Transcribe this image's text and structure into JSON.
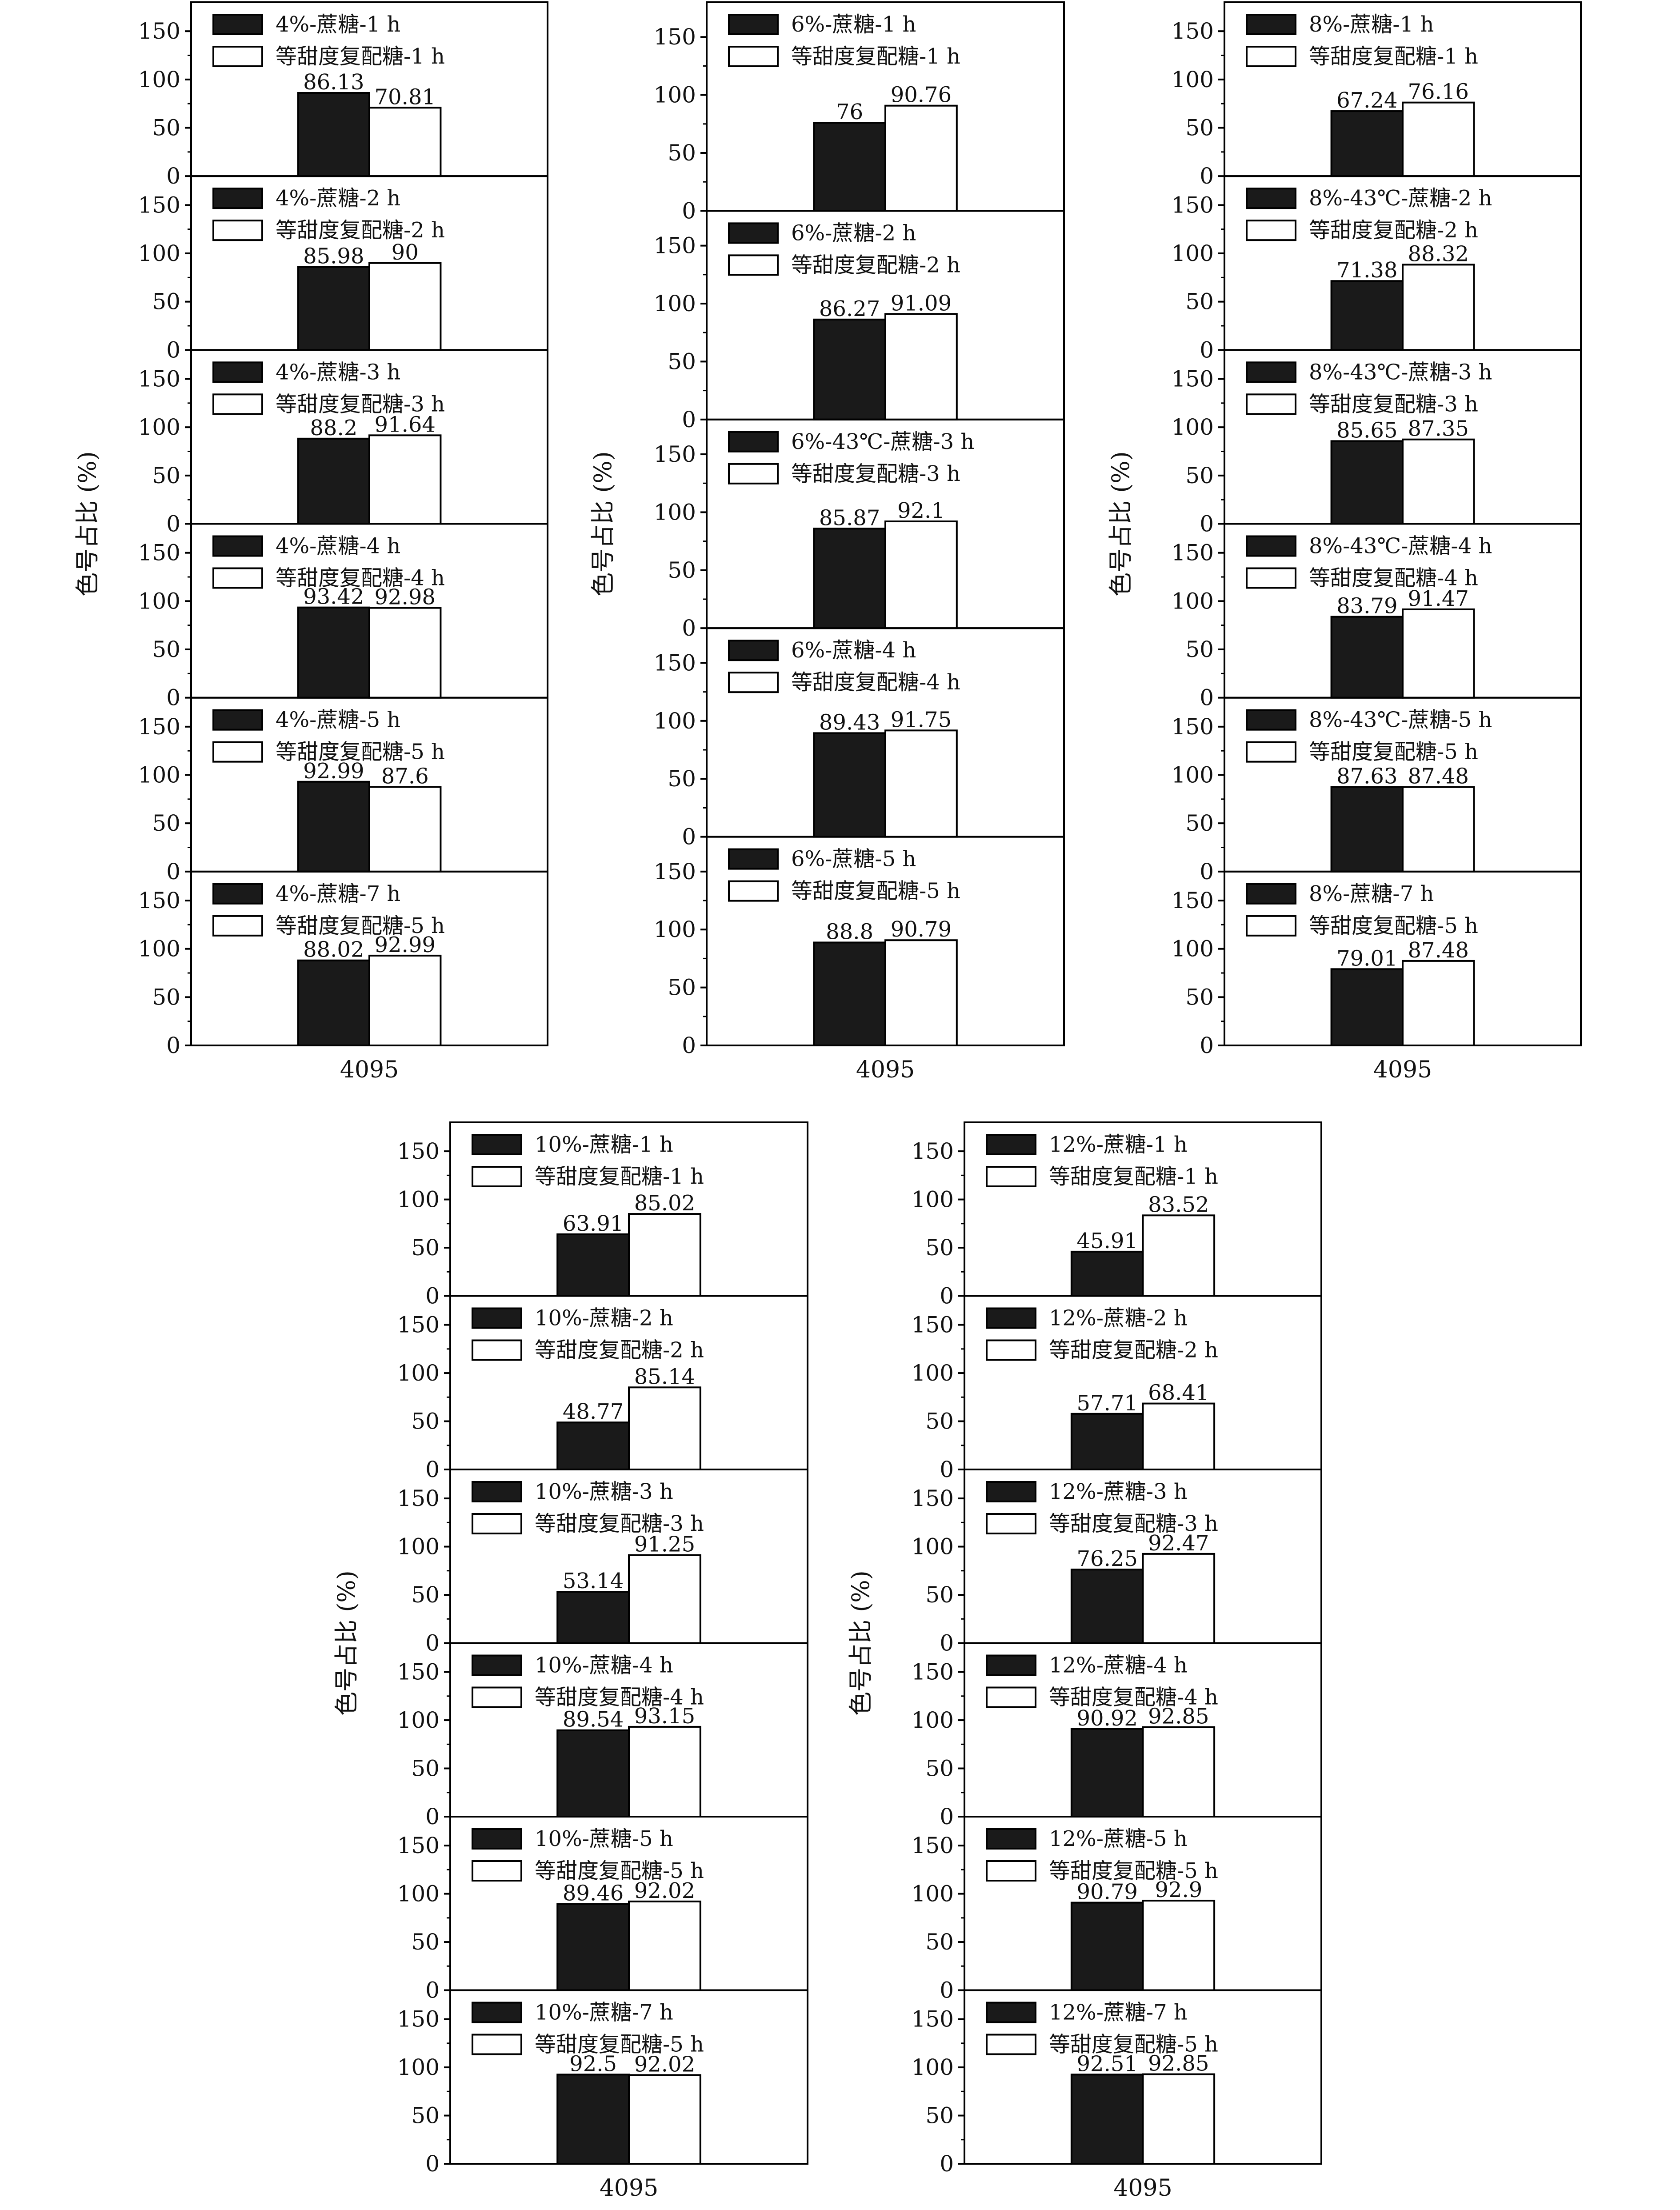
{
  "colors": {
    "sucrose": "#1a1a1a",
    "blend": "#ffffff",
    "frame": "#000000"
  },
  "chart_data": [
    {
      "type": "bar",
      "id": "4pct",
      "ylabel": "色号占比 (%)",
      "xlabel": "4095",
      "yticks": [
        0,
        50,
        100,
        150
      ],
      "ylim": [
        0,
        180
      ],
      "panels": [
        {
          "series": [
            {
              "name": "4%-蔗糖-1 h",
              "value": 86.13,
              "value_label": "86.13"
            },
            {
              "name": "等甜度复配糖-1 h",
              "value": 70.81,
              "value_label": "70.81"
            }
          ]
        },
        {
          "series": [
            {
              "name": "4%-蔗糖-2 h",
              "value": 85.98,
              "value_label": "85.98"
            },
            {
              "name": "等甜度复配糖-2 h",
              "value": 90,
              "value_label": "90"
            }
          ]
        },
        {
          "series": [
            {
              "name": "4%-蔗糖-3 h",
              "value": 88.2,
              "value_label": "88.2"
            },
            {
              "name": "等甜度复配糖-3 h",
              "value": 91.64,
              "value_label": "91.64"
            }
          ]
        },
        {
          "series": [
            {
              "name": "4%-蔗糖-4 h",
              "value": 93.42,
              "value_label": "93.42"
            },
            {
              "name": "等甜度复配糖-4 h",
              "value": 92.98,
              "value_label": "92.98"
            }
          ]
        },
        {
          "series": [
            {
              "name": "4%-蔗糖-5 h",
              "value": 92.99,
              "value_label": "92.99"
            },
            {
              "name": "等甜度复配糖-5 h",
              "value": 87.6,
              "value_label": "87.6"
            }
          ]
        },
        {
          "series": [
            {
              "name": "4%-蔗糖-7 h",
              "value": 88.02,
              "value_label": "88.02"
            },
            {
              "name": "等甜度复配糖-5 h",
              "value": 92.99,
              "value_label": "92.99"
            }
          ]
        }
      ]
    },
    {
      "type": "bar",
      "id": "6pct",
      "ylabel": "色号占比 (%)",
      "xlabel": "4095",
      "yticks": [
        0,
        50,
        100,
        150
      ],
      "ylim": [
        0,
        180
      ],
      "panels": [
        {
          "series": [
            {
              "name": "6%-蔗糖-1 h",
              "value": 76,
              "value_label": "76"
            },
            {
              "name": "等甜度复配糖-1 h",
              "value": 90.76,
              "value_label": "90.76"
            }
          ]
        },
        {
          "series": [
            {
              "name": "6%-蔗糖-2 h",
              "value": 86.27,
              "value_label": "86.27"
            },
            {
              "name": "等甜度复配糖-2 h",
              "value": 91.09,
              "value_label": "91.09"
            }
          ]
        },
        {
          "series": [
            {
              "name": "6%-43℃-蔗糖-3 h",
              "value": 85.87,
              "value_label": "85.87"
            },
            {
              "name": "等甜度复配糖-3 h",
              "value": 92.1,
              "value_label": "92.1"
            }
          ]
        },
        {
          "series": [
            {
              "name": "6%-蔗糖-4 h",
              "value": 89.43,
              "value_label": "89.43"
            },
            {
              "name": "等甜度复配糖-4 h",
              "value": 91.75,
              "value_label": "91.75"
            }
          ]
        },
        {
          "series": [
            {
              "name": "6%-蔗糖-5 h",
              "value": 88.8,
              "value_label": "88.8"
            },
            {
              "name": "等甜度复配糖-5 h",
              "value": 90.79,
              "value_label": "90.79"
            }
          ]
        }
      ]
    },
    {
      "type": "bar",
      "id": "8pct",
      "ylabel": "色号占比 (%)",
      "xlabel": "4095",
      "yticks": [
        0,
        50,
        100,
        150
      ],
      "ylim": [
        0,
        180
      ],
      "panels": [
        {
          "series": [
            {
              "name": "8%-蔗糖-1 h",
              "value": 67.24,
              "value_label": "67.24"
            },
            {
              "name": "等甜度复配糖-1 h",
              "value": 76.16,
              "value_label": "76.16"
            }
          ]
        },
        {
          "series": [
            {
              "name": "8%-43℃-蔗糖-2 h",
              "value": 71.38,
              "value_label": "71.38"
            },
            {
              "name": "等甜度复配糖-2 h",
              "value": 88.32,
              "value_label": "88.32"
            }
          ]
        },
        {
          "series": [
            {
              "name": "8%-43℃-蔗糖-3 h",
              "value": 85.65,
              "value_label": "85.65"
            },
            {
              "name": "等甜度复配糖-3 h",
              "value": 87.35,
              "value_label": "87.35"
            }
          ]
        },
        {
          "series": [
            {
              "name": "8%-43℃-蔗糖-4 h",
              "value": 83.79,
              "value_label": "83.79"
            },
            {
              "name": "等甜度复配糖-4 h",
              "value": 91.47,
              "value_label": "91.47"
            }
          ]
        },
        {
          "series": [
            {
              "name": "8%-43℃-蔗糖-5 h",
              "value": 87.63,
              "value_label": "87.63"
            },
            {
              "name": "等甜度复配糖-5 h",
              "value": 87.48,
              "value_label": "87.48"
            }
          ]
        },
        {
          "series": [
            {
              "name": "8%-蔗糖-7 h",
              "value": 79.01,
              "value_label": "79.01"
            },
            {
              "name": "等甜度复配糖-5 h",
              "value": 87.48,
              "value_label": "87.48"
            }
          ]
        }
      ]
    },
    {
      "type": "bar",
      "id": "10pct",
      "ylabel": "色号占比 (%)",
      "xlabel": "4095",
      "yticks": [
        0,
        50,
        100,
        150
      ],
      "ylim": [
        0,
        180
      ],
      "panels": [
        {
          "series": [
            {
              "name": "10%-蔗糖-1 h",
              "value": 63.91,
              "value_label": "63.91"
            },
            {
              "name": "等甜度复配糖-1 h",
              "value": 85.02,
              "value_label": "85.02"
            }
          ]
        },
        {
          "series": [
            {
              "name": "10%-蔗糖-2 h",
              "value": 48.77,
              "value_label": "48.77"
            },
            {
              "name": "等甜度复配糖-2 h",
              "value": 85.14,
              "value_label": "85.14"
            }
          ]
        },
        {
          "series": [
            {
              "name": "10%-蔗糖-3 h",
              "value": 53.14,
              "value_label": "53.14"
            },
            {
              "name": "等甜度复配糖-3 h",
              "value": 91.25,
              "value_label": "91.25"
            }
          ]
        },
        {
          "series": [
            {
              "name": "10%-蔗糖-4 h",
              "value": 89.54,
              "value_label": "89.54"
            },
            {
              "name": "等甜度复配糖-4 h",
              "value": 93.15,
              "value_label": "93.15"
            }
          ]
        },
        {
          "series": [
            {
              "name": "10%-蔗糖-5 h",
              "value": 89.46,
              "value_label": "89.46"
            },
            {
              "name": "等甜度复配糖-5 h",
              "value": 92.02,
              "value_label": "92.02"
            }
          ]
        },
        {
          "series": [
            {
              "name": "10%-蔗糖-7 h",
              "value": 92.5,
              "value_label": "92.5"
            },
            {
              "name": "等甜度复配糖-5 h",
              "value": 92.02,
              "value_label": "92.02"
            }
          ]
        }
      ]
    },
    {
      "type": "bar",
      "id": "12pct",
      "ylabel": "色号占比 (%)",
      "xlabel": "4095",
      "yticks": [
        0,
        50,
        100,
        150
      ],
      "ylim": [
        0,
        180
      ],
      "panels": [
        {
          "series": [
            {
              "name": "12%-蔗糖-1 h",
              "value": 45.91,
              "value_label": "45.91"
            },
            {
              "name": "等甜度复配糖-1 h",
              "value": 83.52,
              "value_label": "83.52"
            }
          ]
        },
        {
          "series": [
            {
              "name": "12%-蔗糖-2 h",
              "value": 57.71,
              "value_label": "57.71"
            },
            {
              "name": "等甜度复配糖-2 h",
              "value": 68.41,
              "value_label": "68.41"
            }
          ]
        },
        {
          "series": [
            {
              "name": "12%-蔗糖-3 h",
              "value": 76.25,
              "value_label": "76.25"
            },
            {
              "name": "等甜度复配糖-3 h",
              "value": 92.47,
              "value_label": "92.47"
            }
          ]
        },
        {
          "series": [
            {
              "name": "12%-蔗糖-4 h",
              "value": 90.92,
              "value_label": "90.92"
            },
            {
              "name": "等甜度复配糖-4 h",
              "value": 92.85,
              "value_label": "92.85"
            }
          ]
        },
        {
          "series": [
            {
              "name": "12%-蔗糖-5 h",
              "value": 90.79,
              "value_label": "90.79"
            },
            {
              "name": "等甜度复配糖-5 h",
              "value": 92.9,
              "value_label": "92.9"
            }
          ]
        },
        {
          "series": [
            {
              "name": "12%-蔗糖-7 h",
              "value": 92.51,
              "value_label": "92.51"
            },
            {
              "name": "等甜度复配糖-5 h",
              "value": 92.85,
              "value_label": "92.85"
            }
          ]
        }
      ]
    }
  ]
}
